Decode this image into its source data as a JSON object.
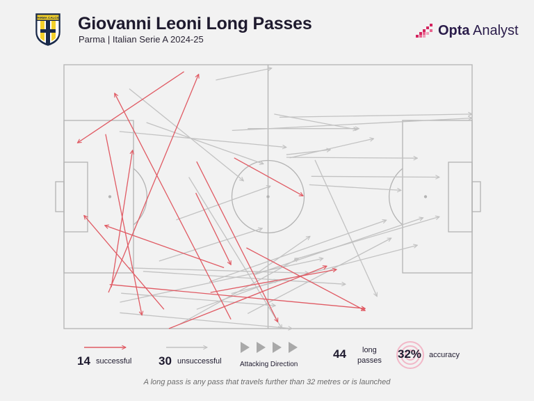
{
  "header": {
    "title": "Giovanni Leoni Long Passes",
    "subtitle": "Parma | Italian Serie A 2024-25",
    "crest_text": "PARMA CALCIO"
  },
  "brand": {
    "name_bold": "Opta",
    "name_regular": " Analyst"
  },
  "legend": {
    "successful_count": "14",
    "successful_label": "successful",
    "unsuccessful_count": "30",
    "unsuccessful_label": "unsuccessful",
    "direction_label": "Attacking Direction",
    "total_count": "44",
    "total_label_line1": "long",
    "total_label_line2": "passes",
    "accuracy_value": "32%",
    "accuracy_label": "accuracy"
  },
  "footnote": "A long pass is any pass that travels further than 32 metres or is launched",
  "colors": {
    "successful": "#e05a63",
    "unsuccessful": "#c2c2c2",
    "pitch_lines": "#b3b3b3",
    "title": "#1e1a2e",
    "brand": "#2a1c4a",
    "brand_accent": "#d4245f"
  },
  "chart_data": {
    "type": "scatter",
    "description_units": "pitch coordinates, x 0-100 toward attacking goal, y 0-100 from top touchline",
    "series": [
      {
        "name": "successful",
        "passes": [
          {
            "x1": 29.4,
            "y1": 2.6,
            "x2": 3.3,
            "y2": 29.6
          },
          {
            "x1": 40.9,
            "y1": 96.5,
            "x2": 12.4,
            "y2": 10.8
          },
          {
            "x1": 10.2,
            "y1": 26.3,
            "x2": 19.1,
            "y2": 94.9
          },
          {
            "x1": 11.6,
            "y1": 84.3,
            "x2": 16.8,
            "y2": 32.4
          },
          {
            "x1": 10.9,
            "y1": 86.3,
            "x2": 33.0,
            "y2": 3.6
          },
          {
            "x1": 32.5,
            "y1": 36.7,
            "x2": 52.4,
            "y2": 97.5
          },
          {
            "x1": 32.3,
            "y1": 48.6,
            "x2": 40.9,
            "y2": 75.8
          },
          {
            "x1": 44.7,
            "y1": 69.4,
            "x2": 73.8,
            "y2": 93.2
          },
          {
            "x1": 41.7,
            "y1": 35.3,
            "x2": 58.6,
            "y2": 49.7
          },
          {
            "x1": 39.2,
            "y1": 76.9,
            "x2": 10.0,
            "y2": 60.9
          },
          {
            "x1": 24.5,
            "y1": 92.7,
            "x2": 4.9,
            "y2": 57.1
          },
          {
            "x1": 11.2,
            "y1": 83.3,
            "x2": 73.8,
            "y2": 92.4
          },
          {
            "x1": 25.7,
            "y1": 100.0,
            "x2": 64.4,
            "y2": 76.3
          },
          {
            "x1": 35.9,
            "y1": 86.3,
            "x2": 66.8,
            "y2": 77.6
          }
        ]
      },
      {
        "name": "unsuccessful",
        "passes": [
          {
            "x1": 16.0,
            "y1": 9.1,
            "x2": 44.0,
            "y2": 44.0
          },
          {
            "x1": 13.6,
            "y1": 25.3,
            "x2": 54.5,
            "y2": 31.3
          },
          {
            "x1": 20.2,
            "y1": 21.9,
            "x2": 48.9,
            "y2": 37.6
          },
          {
            "x1": 45.0,
            "y1": 24.2,
            "x2": 72.3,
            "y2": 24.2
          },
          {
            "x1": 51.5,
            "y1": 18.7,
            "x2": 71.8,
            "y2": 24.6
          },
          {
            "x1": 41.2,
            "y1": 24.9,
            "x2": 100.0,
            "y2": 20.2
          },
          {
            "x1": 52.8,
            "y1": 19.9,
            "x2": 100.0,
            "y2": 18.7
          },
          {
            "x1": 54.5,
            "y1": 35.1,
            "x2": 86.6,
            "y2": 35.4
          },
          {
            "x1": 54.5,
            "y1": 34.1,
            "x2": 65.3,
            "y2": 32.2
          },
          {
            "x1": 55.3,
            "y1": 35.3,
            "x2": 75.9,
            "y2": 28.0
          },
          {
            "x1": 60.6,
            "y1": 42.3,
            "x2": 92.0,
            "y2": 42.6
          },
          {
            "x1": 60.1,
            "y1": 45.5,
            "x2": 82.6,
            "y2": 47.6
          },
          {
            "x1": 30.6,
            "y1": 42.6,
            "x2": 53.4,
            "y2": 100.0
          },
          {
            "x1": 37.2,
            "y1": 5.8,
            "x2": 50.9,
            "y2": 1.3
          },
          {
            "x1": 27.5,
            "y1": 58.8,
            "x2": 50.6,
            "y2": 46.0
          },
          {
            "x1": 23.3,
            "y1": 74.4,
            "x2": 48.6,
            "y2": 62.0
          },
          {
            "x1": 47.0,
            "y1": 79.3,
            "x2": 60.3,
            "y2": 65.0
          },
          {
            "x1": 32.5,
            "y1": 92.7,
            "x2": 52.4,
            "y2": 81.5
          },
          {
            "x1": 28.4,
            "y1": 98.3,
            "x2": 57.5,
            "y2": 73.3
          },
          {
            "x1": 15.8,
            "y1": 77.0,
            "x2": 60.0,
            "y2": 79.0
          },
          {
            "x1": 14.0,
            "y1": 86.6,
            "x2": 51.8,
            "y2": 91.3
          },
          {
            "x1": 13.7,
            "y1": 90.0,
            "x2": 63.5,
            "y2": 73.4
          },
          {
            "x1": 45.0,
            "y1": 94.3,
            "x2": 80.2,
            "y2": 65.7
          },
          {
            "x1": 41.0,
            "y1": 86.7,
            "x2": 86.6,
            "y2": 68.4
          },
          {
            "x1": 46.6,
            "y1": 79.6,
            "x2": 88.0,
            "y2": 58.0
          },
          {
            "x1": 35.6,
            "y1": 82.3,
            "x2": 79.0,
            "y2": 58.9
          },
          {
            "x1": 19.4,
            "y1": 78.3,
            "x2": 69.0,
            "y2": 83.2
          },
          {
            "x1": 13.7,
            "y1": 94.0,
            "x2": 55.9,
            "y2": 100.0
          },
          {
            "x1": 56.4,
            "y1": 73.8,
            "x2": 92.0,
            "y2": 57.6
          },
          {
            "x1": 61.5,
            "y1": 36.1,
            "x2": 76.7,
            "y2": 87.8
          }
        ]
      }
    ],
    "title": "Giovanni Leoni Long Passes",
    "subtitle": "Parma | Italian Serie A 2024-25",
    "xlim": [
      0,
      100
    ],
    "ylim": [
      0,
      100
    ],
    "legend": [
      "successful",
      "unsuccessful"
    ],
    "grid": false
  }
}
